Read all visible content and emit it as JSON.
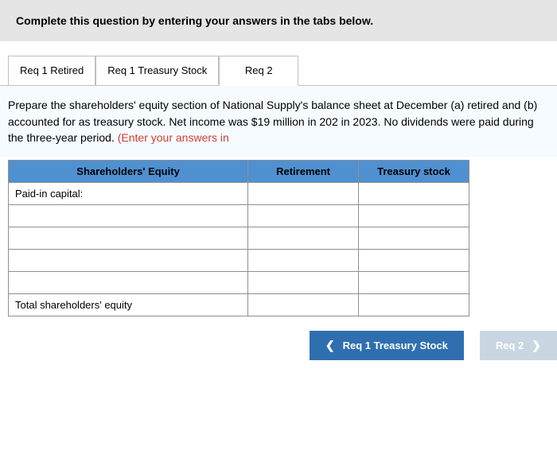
{
  "instruction": "Complete this question by entering your answers in the tabs below.",
  "tabs": [
    {
      "label": "Req 1 Retired",
      "active": false
    },
    {
      "label": "Req 1 Treasury Stock",
      "active": false
    },
    {
      "label": "Req 2",
      "active": true
    }
  ],
  "prompt": {
    "main": "Prepare the shareholders' equity section of National Supply's balance sheet at December (a) retired and (b) accounted for as treasury stock. Net income was $19 million in 202 in 2023. No dividends were paid during the three-year period. ",
    "red": "(Enter your answers in"
  },
  "table": {
    "headers": [
      "Shareholders' Equity",
      "Retirement",
      "Treasury stock"
    ],
    "rows": [
      {
        "label": "Paid-in capital:",
        "retirement": "",
        "treasury": ""
      },
      {
        "label": "",
        "retirement": "",
        "treasury": ""
      },
      {
        "label": "",
        "retirement": "",
        "treasury": ""
      },
      {
        "label": "",
        "retirement": "",
        "treasury": ""
      },
      {
        "label": "",
        "retirement": "",
        "treasury": ""
      },
      {
        "label": "Total shareholders' equity",
        "retirement": "",
        "treasury": ""
      }
    ]
  },
  "nav": {
    "prev": "Req 1 Treasury Stock",
    "next": "Req 2"
  },
  "colors": {
    "instruction_bg": "#e5e5e5",
    "header_bg": "#4f90d1",
    "prev_btn": "#2f6fb0",
    "next_btn": "#c9d6e2",
    "red_text": "#d63b2f",
    "prompt_bg": "#f5fbff"
  }
}
